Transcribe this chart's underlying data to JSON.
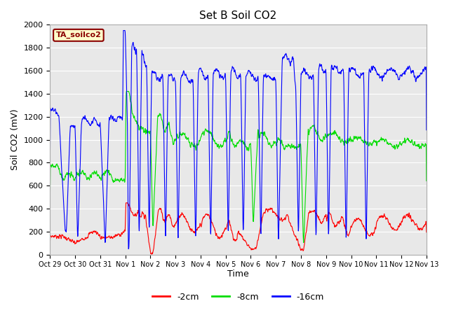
{
  "title": "Set B Soil CO2",
  "ylabel": "Soil CO2 (mV)",
  "xlabel": "Time",
  "legend_label": "TA_soilco2",
  "legend_box_facecolor": "#ffffcc",
  "legend_box_edge": "#8B0000",
  "bg_color": "#e8e8e8",
  "ylim": [
    0,
    2000
  ],
  "line_colors": {
    "2cm": "#ff0000",
    "8cm": "#00dd00",
    "16cm": "#0000ff"
  },
  "legend_entries": [
    "-2cm",
    "-8cm",
    "-16cm"
  ],
  "xtick_labels": [
    "Oct 29",
    "Oct 30",
    "Oct 31",
    "Nov 1",
    "Nov 2",
    "Nov 3",
    "Nov 4",
    "Nov 5",
    "Nov 6",
    "Nov 7",
    "Nov 8",
    "Nov 9",
    "Nov 10",
    "Nov 11",
    "Nov 12",
    "Nov 13"
  ],
  "ytick_vals": [
    0,
    200,
    400,
    600,
    800,
    1000,
    1200,
    1400,
    1600,
    1800,
    2000
  ],
  "n_points": 1500,
  "total_days": 15
}
